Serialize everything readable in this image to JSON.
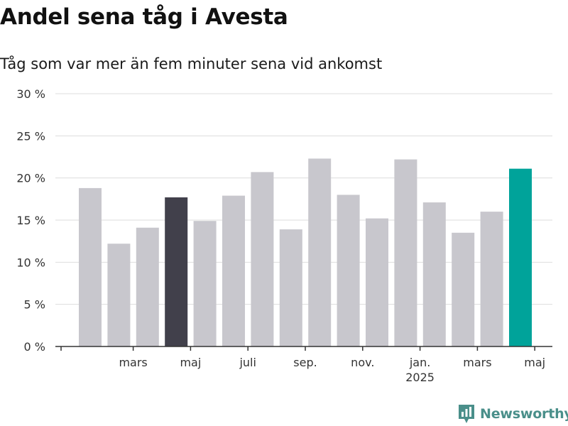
{
  "title": "Andel sena tåg i Avesta",
  "subtitle": "Tåg som var mer än fem minuter sena vid ankomst",
  "brand": "Newsworthy",
  "chart_data": {
    "type": "bar",
    "y_tick_labels": [
      "0 %",
      "5 %",
      "10 %",
      "15 %",
      "20 %",
      "25 %",
      "30 %"
    ],
    "ylim": [
      0,
      30
    ],
    "grid": true,
    "values": [
      18.8,
      12.2,
      14.1,
      17.7,
      14.9,
      17.9,
      20.7,
      13.9,
      22.3,
      18.0,
      15.2,
      22.2,
      17.1,
      13.5,
      16.0,
      21.1
    ],
    "x_tick_labels": [
      {
        "bar": 1.5,
        "label": "mars"
      },
      {
        "bar": 3.5,
        "label": "maj"
      },
      {
        "bar": 5.5,
        "label": "juli"
      },
      {
        "bar": 7.5,
        "label": "sep."
      },
      {
        "bar": 9.5,
        "label": "nov."
      },
      {
        "bar": 11.5,
        "label": "jan.",
        "sublabel": "2025"
      },
      {
        "bar": 13.5,
        "label": "mars"
      },
      {
        "bar": 15.5,
        "label": "maj"
      }
    ],
    "colors": {
      "default": "#c8c7cd",
      "highlight_previous_year": "#41404b",
      "highlight_latest": "#00a39a",
      "grid": "#dddddd",
      "axis": "#333333"
    },
    "highlight_dark_index": 3,
    "highlight_accent_index": 15
  }
}
